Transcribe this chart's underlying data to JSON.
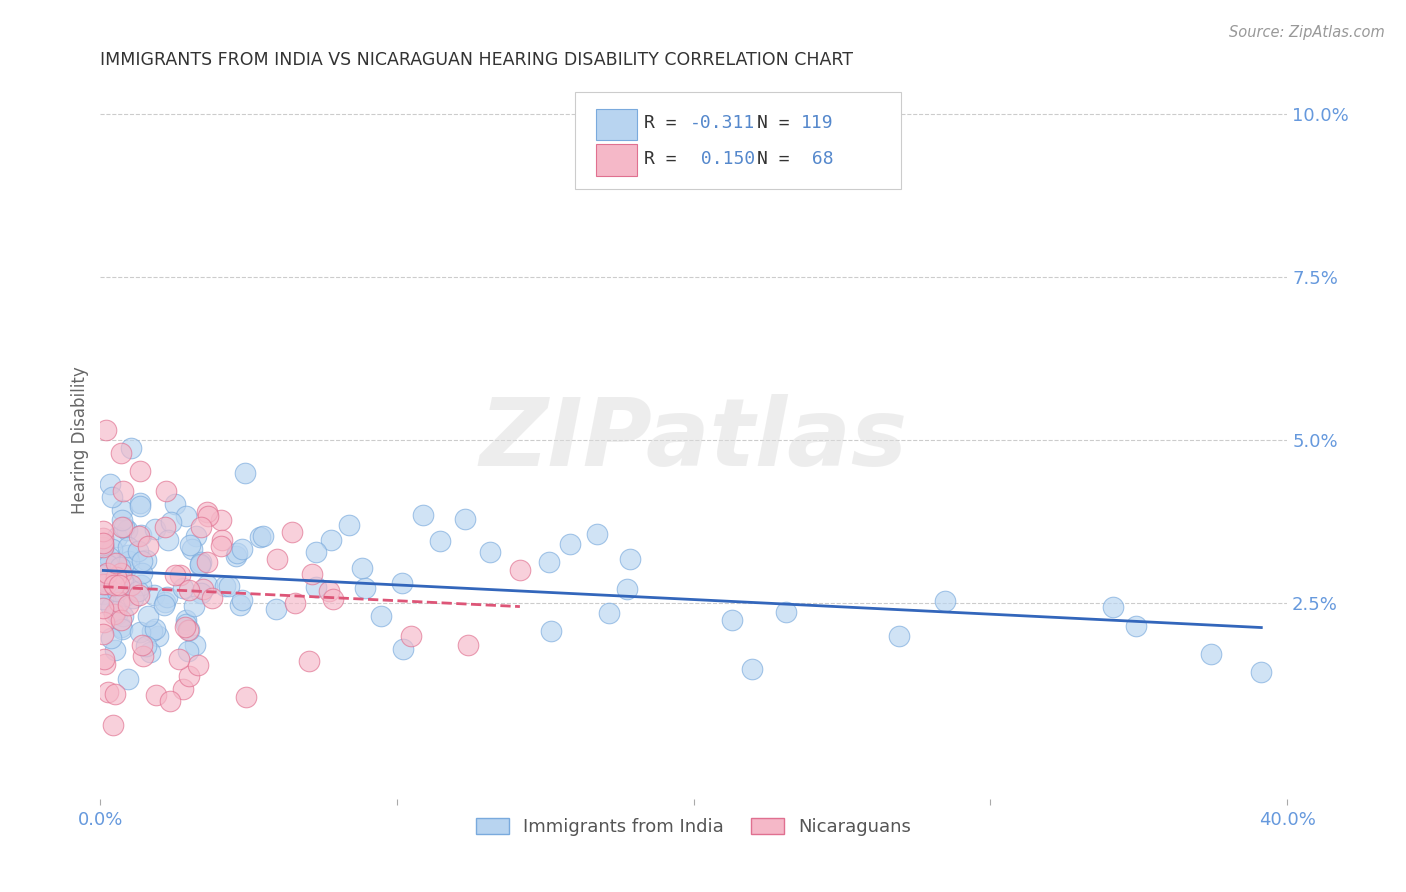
{
  "title": "IMMIGRANTS FROM INDIA VS NICARAGUAN HEARING DISABILITY CORRELATION CHART",
  "source": "Source: ZipAtlas.com",
  "ylabel": "Hearing Disability",
  "xlim": [
    0,
    0.4
  ],
  "ylim": [
    -0.005,
    0.105
  ],
  "xtick_positions": [
    0.0,
    0.4
  ],
  "xtick_labels": [
    "0.0%",
    "40.0%"
  ],
  "yticks": [
    0.025,
    0.05,
    0.075,
    0.1
  ],
  "ytick_labels": [
    "2.5%",
    "5.0%",
    "7.5%",
    "10.0%"
  ],
  "series1_label": "Immigrants from India",
  "series1_color": "#b8d4f0",
  "series1_edge_color": "#7aaadd",
  "series1_R": -0.311,
  "series1_N": 119,
  "series2_label": "Nicaraguans",
  "series2_color": "#f5b8c8",
  "series2_edge_color": "#e07090",
  "series2_R": 0.15,
  "series2_N": 68,
  "trend1_color": "#3366bb",
  "trend2_color": "#dd5577",
  "background_color": "#ffffff",
  "grid_color": "#cccccc",
  "title_color": "#333333",
  "axis_color": "#6699dd",
  "legend_text_color": "#333333",
  "legend_value_color": "#5588cc",
  "watermark_text": "ZIPatlas"
}
